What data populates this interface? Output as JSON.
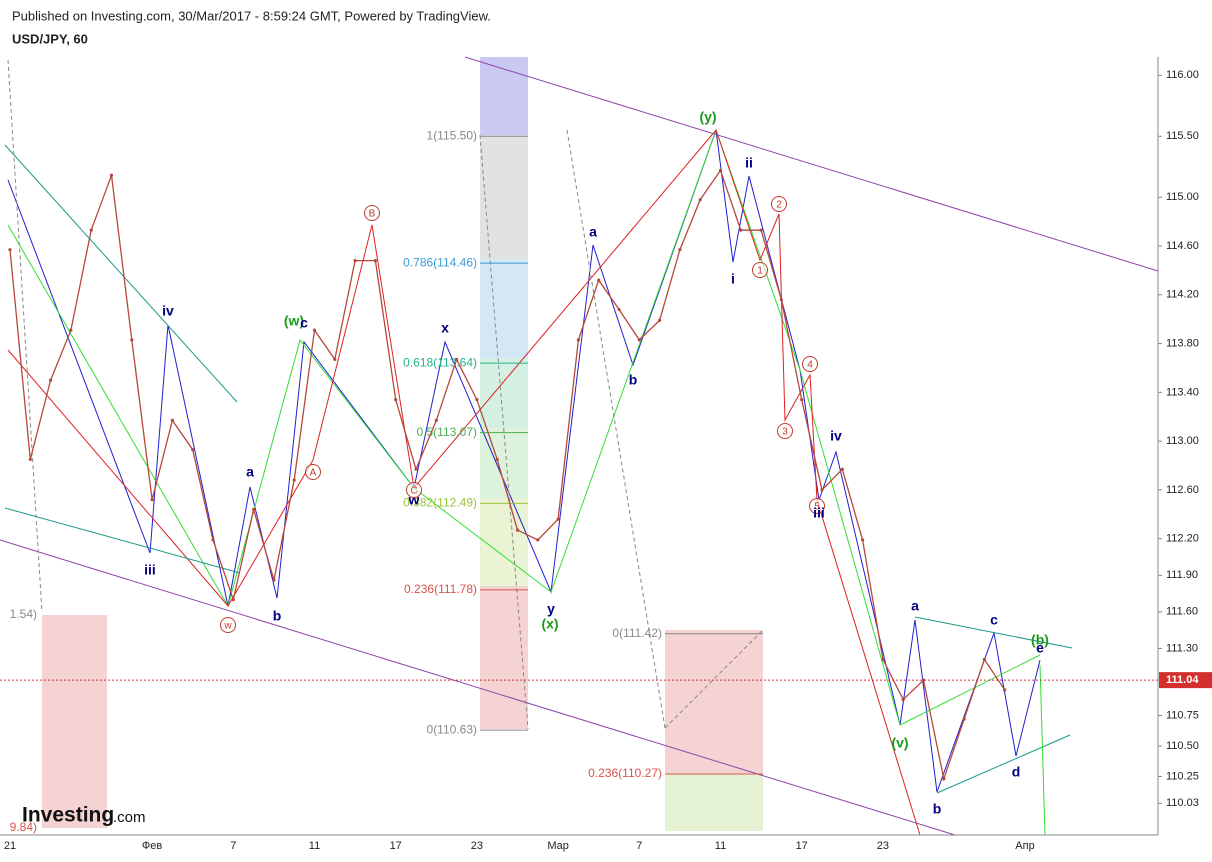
{
  "header": {
    "published": "Published on Investing.com, 30/Mar/2017 - 8:59:24 GMT, Powered by TradingView.",
    "symbol": "USD/JPY, 60"
  },
  "logo": {
    "brand": "Investing",
    "suffix": ".com"
  },
  "chart_data": {
    "type": "line",
    "categories": [
      "21",
      null,
      null,
      null,
      null,
      null,
      null,
      "Фев",
      null,
      null,
      null,
      "7",
      null,
      null,
      null,
      "11",
      null,
      null,
      null,
      "17",
      null,
      null,
      null,
      "23",
      null,
      null,
      null,
      "Мар",
      null,
      null,
      null,
      "7",
      null,
      null,
      null,
      "11",
      null,
      null,
      null,
      "17",
      null,
      null,
      null,
      "23",
      null,
      null,
      null,
      null,
      null,
      null,
      "Апр",
      null,
      null,
      null,
      null,
      null,
      null
    ],
    "series": [
      {
        "name": "USD/JPY",
        "color": "#b5483b",
        "values": [
          114.57,
          112.85,
          113.5,
          113.91,
          114.73,
          115.18,
          113.83,
          112.52,
          113.17,
          112.93,
          112.19,
          111.7,
          112.44,
          111.86,
          112.68,
          113.91,
          113.67,
          114.48,
          114.48,
          113.34,
          112.77,
          113.17,
          113.67,
          113.34,
          112.85,
          112.27,
          112.19,
          112.36,
          113.83,
          114.32,
          114.08,
          113.83,
          113.99,
          114.57,
          114.98,
          115.22,
          114.73,
          114.73,
          114.16,
          113.34,
          112.6,
          112.77,
          112.19,
          111.21,
          110.88,
          111.04,
          110.23,
          110.72,
          111.21,
          110.96,
          null,
          null,
          null,
          null,
          null,
          null,
          null
        ]
      }
    ],
    "ylim": [
      109.77,
      116.15
    ],
    "yticks": [
      {
        "value": 116,
        "label": "116.00"
      },
      {
        "value": 115.5,
        "label": "115.50"
      },
      {
        "value": 115,
        "label": "115.00"
      },
      {
        "value": 114.6,
        "label": "114.60"
      },
      {
        "value": 114.2,
        "label": "114.20"
      },
      {
        "value": 113.8,
        "label": "113.80"
      },
      {
        "value": 113.4,
        "label": "113.40"
      },
      {
        "value": 113,
        "label": "113.00"
      },
      {
        "value": 112.6,
        "label": "112.60"
      },
      {
        "value": 112.2,
        "label": "112.20"
      },
      {
        "value": 111.9,
        "label": "111.90"
      },
      {
        "value": 111.6,
        "label": "111.60"
      },
      {
        "value": 111.3,
        "label": "111.30"
      },
      {
        "value": 110.75,
        "label": "110.75"
      },
      {
        "value": 110.5,
        "label": "110.50"
      },
      {
        "value": 110.25,
        "label": "110.25"
      },
      {
        "value": 110.03,
        "label": "110.03"
      }
    ],
    "current_price": 111.04,
    "fib_levels": [
      {
        "value": 115.5,
        "label": "1(115.50)",
        "color": "#888888"
      },
      {
        "value": 114.46,
        "label": "0.786(114.46)",
        "color": "#3a9bd5"
      },
      {
        "value": 113.64,
        "label": "0.618(113.64)",
        "color": "#26b38a"
      },
      {
        "value": 113.07,
        "label": "0.5(113.07)",
        "color": "#4caf50"
      },
      {
        "value": 112.49,
        "label": "0.382(112.49)",
        "color": "#9ac53a"
      },
      {
        "value": 111.78,
        "label": "0.236(111.78)",
        "color": "#d9534f"
      },
      {
        "value": 110.63,
        "label": "0(110.63)",
        "color": "#888888"
      },
      {
        "value": 111.42,
        "label": "0(111.42)",
        "color": "#888888"
      },
      {
        "value": 110.27,
        "label": "0.236(110.27)",
        "color": "#d9534f"
      }
    ],
    "edge_labels": [
      "1.54)",
      "9.84)"
    ],
    "annotations": [
      {
        "text": "iv",
        "color": "#000080"
      },
      {
        "text": "iii",
        "color": "#000080"
      },
      {
        "text": "a",
        "color": "#000080"
      },
      {
        "text": "b",
        "color": "#000080"
      },
      {
        "text": "(w)",
        "color": "#1a9a1a"
      },
      {
        "text": "c",
        "color": "#000080"
      },
      {
        "text": "x",
        "color": "#000080"
      },
      {
        "text": "w",
        "color": "#000080"
      },
      {
        "text": "A",
        "color": "#c0392b",
        "circled": true
      },
      {
        "text": "B",
        "color": "#c0392b",
        "circled": true
      },
      {
        "text": "C",
        "color": "#c0392b",
        "circled": true
      },
      {
        "text": "a",
        "color": "#000080"
      },
      {
        "text": "b",
        "color": "#000080"
      },
      {
        "text": "y",
        "color": "#000080"
      },
      {
        "text": "(x)",
        "color": "#1a9a1a"
      },
      {
        "text": "(y)",
        "color": "#1a9a1a"
      },
      {
        "text": "ii",
        "color": "#000080"
      },
      {
        "text": "i",
        "color": "#000080"
      },
      {
        "text": "1",
        "color": "#c0392b",
        "circled": true
      },
      {
        "text": "2",
        "color": "#c0392b",
        "circled": true
      },
      {
        "text": "3",
        "color": "#c0392b",
        "circled": true
      },
      {
        "text": "4",
        "color": "#c0392b",
        "circled": true
      },
      {
        "text": "5",
        "color": "#c0392b",
        "circled": true
      },
      {
        "text": "iii",
        "color": "#000080"
      },
      {
        "text": "iv",
        "color": "#000080"
      },
      {
        "text": "a",
        "color": "#000080"
      },
      {
        "text": "b",
        "color": "#000080"
      },
      {
        "text": "c",
        "color": "#000080"
      },
      {
        "text": "d",
        "color": "#000080"
      },
      {
        "text": "(b)",
        "color": "#1a9a1a"
      },
      {
        "text": "e",
        "color": "#000080"
      },
      {
        "text": "(v)",
        "color": "#1a9a1a"
      },
      {
        "text": "w",
        "color": "#c0392b",
        "circled": true
      }
    ]
  }
}
